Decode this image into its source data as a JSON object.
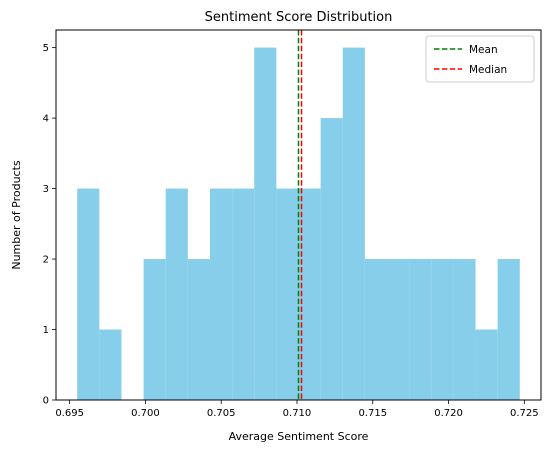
{
  "chart_data": {
    "type": "bar",
    "title": "Sentiment Score Distribution",
    "xlabel": "Average Sentiment Score",
    "ylabel": "Number of Products",
    "xlim": [
      0.6941,
      0.7261
    ],
    "ylim": [
      0,
      5.25
    ],
    "xticks": [
      "0.695",
      "0.700",
      "0.705",
      "0.710",
      "0.715",
      "0.720",
      "0.725"
    ],
    "yticks": [
      "0",
      "1",
      "2",
      "3",
      "4",
      "5"
    ],
    "bin_edges": [
      0.6955,
      0.69696,
      0.69842,
      0.69988,
      0.70134,
      0.7028,
      0.70426,
      0.70572,
      0.70718,
      0.70864,
      0.7101,
      0.71156,
      0.71302,
      0.71448,
      0.71594,
      0.7174,
      0.71886,
      0.72032,
      0.72178,
      0.72324,
      0.7247
    ],
    "counts": [
      3,
      1,
      0,
      2,
      3,
      2,
      3,
      3,
      5,
      3,
      3,
      4,
      5,
      2,
      2,
      2,
      2,
      2,
      1,
      2
    ],
    "bar_color": "#87CEEB",
    "lines": [
      {
        "name": "Mean",
        "x": 0.7101,
        "color": "#008000",
        "style": "dashed"
      },
      {
        "name": "Median",
        "x": 0.7103,
        "color": "#FF0000",
        "style": "dashed"
      }
    ],
    "legend": {
      "position": "top-right",
      "entries": [
        "Mean",
        "Median"
      ]
    },
    "grid": false
  }
}
